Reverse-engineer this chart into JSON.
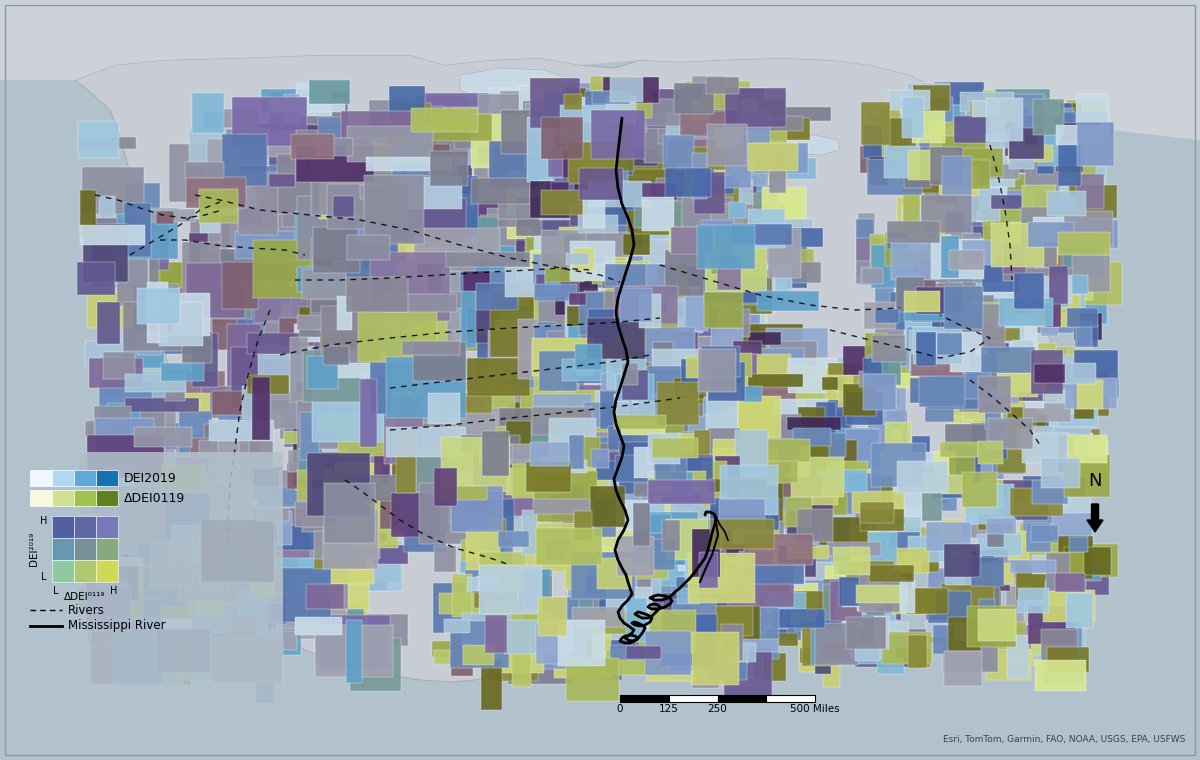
{
  "figsize": [
    12.0,
    7.6
  ],
  "dpi": 100,
  "bg_color": "#b2c2cc",
  "land_color": "#c8ccd4",
  "canada_color": "#d0d4da",
  "mexico_color": "#c8ccd4",
  "ocean_color": "#c0cdd5",
  "attribution": "Esri, TomTom, Garmin, FAO, NOAA, USGS, EPA, USFWS",
  "patch_colors": [
    "#8899b8",
    "#7080a8",
    "#505888",
    "#383068",
    "#a8b8c8",
    "#8898b0",
    "#606880",
    "#484058",
    "#90a870",
    "#788858",
    "#607040",
    "#485830",
    "#c8d890",
    "#a8b870",
    "#889850",
    "#687838",
    "#80b0d0",
    "#5898c0",
    "#3878a8",
    "#205890",
    "#b0c890",
    "#90a870",
    "#708050",
    "#506038",
    "#a898b8",
    "#887898",
    "#685878",
    "#483858",
    "#c0c0c8",
    "#a0a0b0",
    "#888898",
    "#686878"
  ],
  "grey_color": "#9898a8",
  "scale_labels": [
    "0",
    "125",
    "250",
    "500 Miles"
  ],
  "legend_dei2019_colors": [
    "#f0f8ff",
    "#b0d8f0",
    "#60a8d8",
    "#1870b0"
  ],
  "legend_delta_colors": [
    "#f8f8e0",
    "#d0e090",
    "#a0c050",
    "#608020"
  ],
  "bivariate_colors": [
    [
      "#d8f0c8",
      "#b0d890",
      "#88c060",
      "#60a838"
    ],
    [
      "#a8d0e8",
      "#88b0c8",
      "#6090a8",
      "#387888"
    ],
    [
      "#8890d0",
      "#6870b0",
      "#485090",
      "#303070"
    ],
    [
      "#6868b8",
      "#504898",
      "#383078",
      "#201858"
    ]
  ]
}
